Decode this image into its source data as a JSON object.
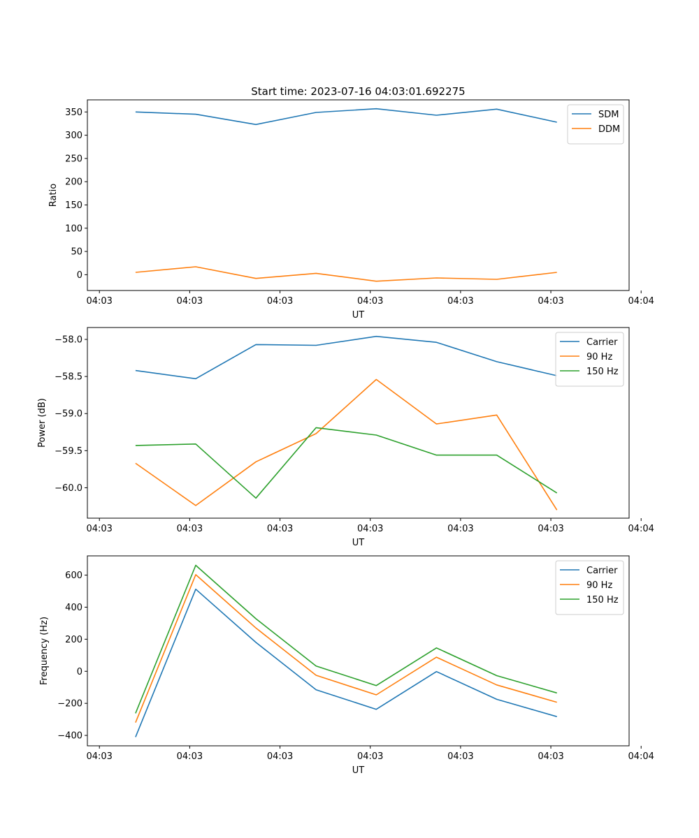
{
  "figure_title": "Start time: 2023-07-16 04:03:01.692275",
  "colors": {
    "blue": "#1f77b4",
    "orange": "#ff7f0e",
    "green": "#2ca02c"
  },
  "chart_data": [
    {
      "type": "line",
      "title": "Start time: 2023-07-16 04:03:01.692275",
      "xlabel": "UT",
      "ylabel": "Ratio",
      "x": [
        1,
        2,
        3,
        4,
        5,
        6,
        7,
        8
      ],
      "xlim": [
        0.2,
        9.2
      ],
      "x_ticks": [
        0.4,
        1.9,
        3.4,
        4.9,
        6.4,
        7.9,
        9.4
      ],
      "x_tick_labels": [
        "04:03",
        "04:03",
        "04:03",
        "04:03",
        "04:03",
        "04:03",
        "04:04"
      ],
      "ylim": [
        -34,
        376
      ],
      "y_ticks": [
        0,
        50,
        100,
        150,
        200,
        250,
        300,
        350
      ],
      "y_tick_labels": [
        "0",
        "50",
        "100",
        "150",
        "200",
        "250",
        "300",
        "350"
      ],
      "legend_position": "top-right",
      "series": [
        {
          "name": "SDM",
          "color": "#1f77b4",
          "values": [
            350,
            345,
            323,
            349,
            357,
            343,
            356,
            328
          ]
        },
        {
          "name": "DDM",
          "color": "#ff7f0e",
          "values": [
            5,
            17,
            -8,
            3,
            -14,
            -7,
            -10,
            5
          ]
        }
      ]
    },
    {
      "type": "line",
      "title": "",
      "xlabel": "UT",
      "ylabel": "Power (dB)",
      "x": [
        1,
        2,
        3,
        4,
        5,
        6,
        7,
        8
      ],
      "xlim": [
        0.2,
        9.2
      ],
      "x_ticks": [
        0.4,
        1.9,
        3.4,
        4.9,
        6.4,
        7.9,
        9.4
      ],
      "x_tick_labels": [
        "04:03",
        "04:03",
        "04:03",
        "04:03",
        "04:03",
        "04:03",
        "04:04"
      ],
      "ylim": [
        -60.41,
        -57.84
      ],
      "y_ticks": [
        -60.0,
        -59.5,
        -59.0,
        -58.5,
        -58.0
      ],
      "y_tick_labels": [
        "−60.0",
        "−59.5",
        "−59.0",
        "−58.5",
        "−58.0"
      ],
      "legend_position": "top-right",
      "series": [
        {
          "name": "Carrier",
          "color": "#1f77b4",
          "values": [
            -58.42,
            -58.53,
            -58.07,
            -58.08,
            -57.96,
            -58.04,
            -58.3,
            -58.49
          ]
        },
        {
          "name": "90 Hz",
          "color": "#ff7f0e",
          "values": [
            -59.67,
            -60.24,
            -59.65,
            -59.27,
            -58.54,
            -59.14,
            -59.02,
            -60.3
          ]
        },
        {
          "name": "150 Hz",
          "color": "#2ca02c",
          "values": [
            -59.43,
            -59.41,
            -60.14,
            -59.19,
            -59.29,
            -59.56,
            -59.56,
            -60.07
          ]
        }
      ]
    },
    {
      "type": "line",
      "title": "",
      "xlabel": "UT",
      "ylabel": "Frequency (Hz)",
      "x": [
        1,
        2,
        3,
        4,
        5,
        6,
        7,
        8
      ],
      "xlim": [
        0.2,
        9.2
      ],
      "x_ticks": [
        0.4,
        1.9,
        3.4,
        4.9,
        6.4,
        7.9,
        9.4
      ],
      "x_tick_labels": [
        "04:03",
        "04:03",
        "04:03",
        "04:03",
        "04:03",
        "04:03",
        "04:04"
      ],
      "ylim": [
        -465,
        720
      ],
      "y_ticks": [
        -400,
        -200,
        0,
        200,
        400,
        600
      ],
      "y_tick_labels": [
        "−400",
        "−200",
        "0",
        "200",
        "400",
        "600"
      ],
      "legend_position": "top-right",
      "series": [
        {
          "name": "Carrier",
          "color": "#1f77b4",
          "values": [
            -410,
            512,
            180,
            -115,
            -237,
            -2,
            -175,
            -283
          ]
        },
        {
          "name": "90 Hz",
          "color": "#ff7f0e",
          "values": [
            -320,
            603,
            270,
            -25,
            -147,
            88,
            -85,
            -193
          ]
        },
        {
          "name": "150 Hz",
          "color": "#2ca02c",
          "values": [
            -262,
            661,
            328,
            33,
            -89,
            146,
            -27,
            -135
          ]
        }
      ]
    }
  ]
}
